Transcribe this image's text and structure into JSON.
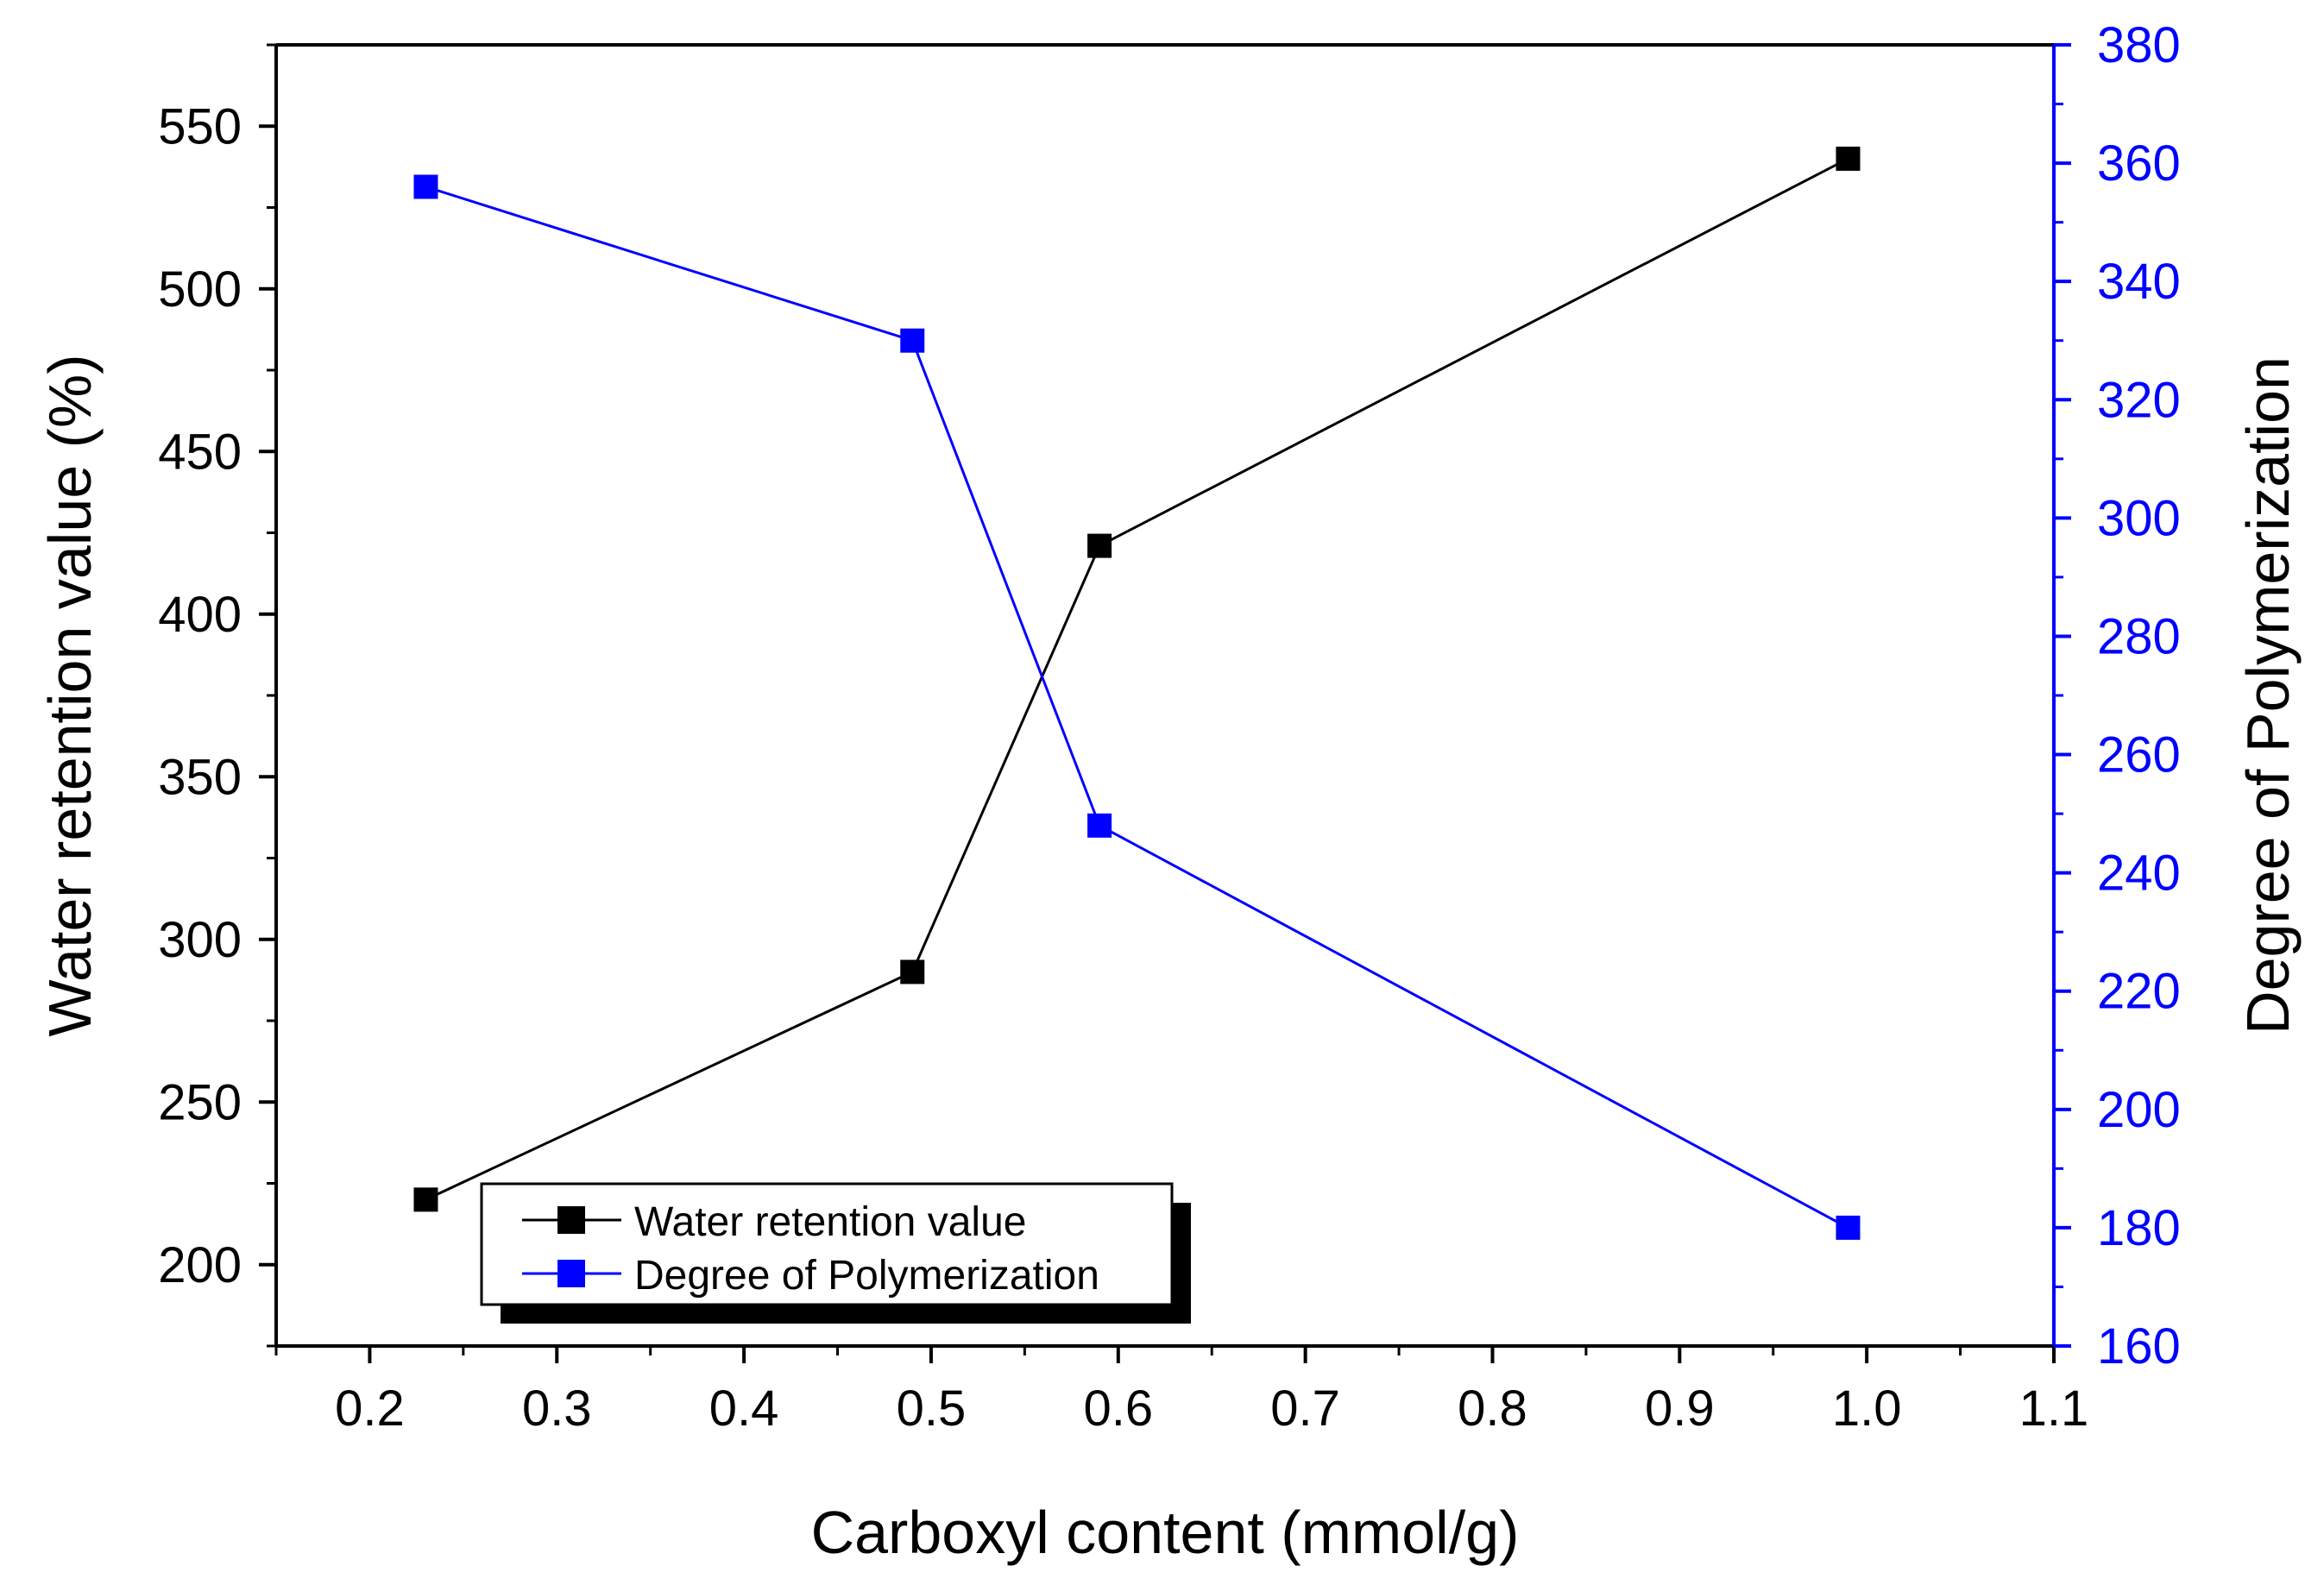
{
  "chart_data": {
    "type": "line",
    "title": "",
    "xlabel": "Carboxyl content (mmol/g)",
    "ylabel": "Water retention value (%)",
    "y2label": "Degree of Polymerization",
    "xlim": [
      0.15,
      1.1
    ],
    "ylim": [
      175,
      575
    ],
    "y2lim": [
      160,
      380
    ],
    "x_ticks": [
      "0.2",
      "0.3",
      "0.4",
      "0.5",
      "0.6",
      "0.7",
      "0.8",
      "0.9",
      "1.0",
      "1.1"
    ],
    "y_ticks": [
      "200",
      "250",
      "300",
      "350",
      "400",
      "450",
      "500",
      "550"
    ],
    "y2_ticks": [
      "160",
      "180",
      "200",
      "220",
      "240",
      "260",
      "280",
      "300",
      "320",
      "340",
      "360",
      "380"
    ],
    "grid": false,
    "legend_position": "bottom-left",
    "series": [
      {
        "name": "Water retention value",
        "axis": "left",
        "color": "#000000",
        "marker": "square",
        "x": [
          0.23,
          0.49,
          0.59,
          0.99
        ],
        "y": [
          220,
          290,
          421,
          540
        ]
      },
      {
        "name": "Degree of Polymerization",
        "axis": "right",
        "color": "#0000ff",
        "marker": "square",
        "x": [
          0.23,
          0.49,
          0.59,
          0.99
        ],
        "y": [
          356,
          330,
          248,
          180
        ]
      }
    ]
  }
}
